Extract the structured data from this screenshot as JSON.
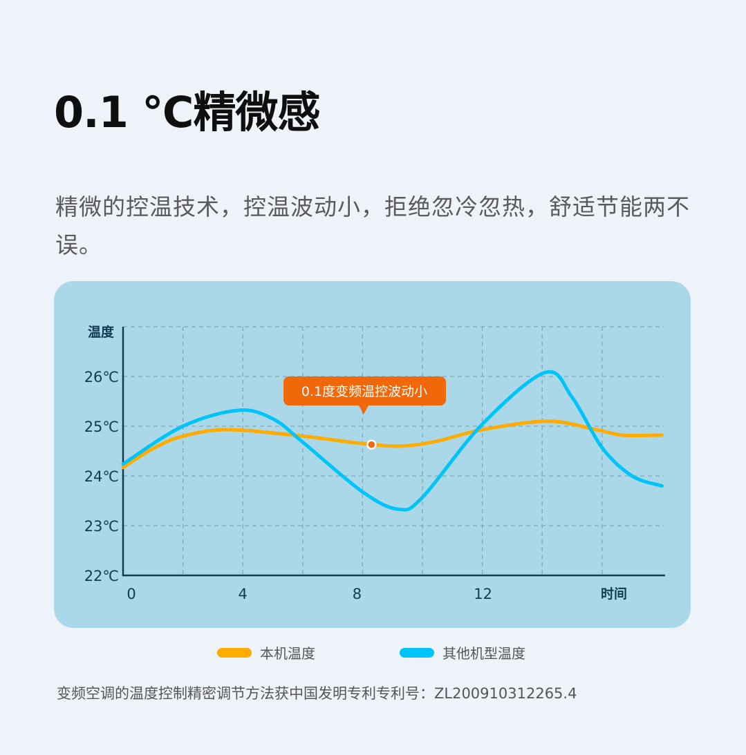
{
  "title": "0.1 ℃精微感",
  "description": "精微的控温技术，控温波动小，拒绝忽冷忽热，舒适节能两不误。",
  "footnote": "变频空调的温度控制精密调节方法获中国发明专利专利号：ZL200910312265.4",
  "chart_data": {
    "type": "line",
    "ylabel": "温度",
    "xlabel": "时间",
    "xlim": [
      0,
      18
    ],
    "ylim": [
      22,
      27
    ],
    "x_ticks": [
      "0",
      "4",
      "8",
      "12"
    ],
    "x_tick_values": [
      0,
      4,
      8,
      12
    ],
    "y_ticks": [
      "22℃",
      "23℃",
      "24℃",
      "25℃",
      "26℃"
    ],
    "y_tick_values": [
      22,
      23,
      24,
      25,
      26
    ],
    "grid": true,
    "legend_placement": "bottom",
    "annotation": {
      "text": "0.1度变频温控波动小",
      "x": 8.3,
      "y": 24.63,
      "color": "#f0680a"
    },
    "series": [
      {
        "name": "本机温度",
        "color": "#ffab00",
        "x": [
          0,
          1,
          2,
          3.5,
          6,
          8,
          9.3,
          10.5,
          12,
          14.2,
          15.8,
          16.7,
          18
        ],
        "y": [
          24.17,
          24.55,
          24.8,
          24.93,
          24.8,
          24.65,
          24.6,
          24.7,
          24.93,
          25.1,
          24.93,
          24.82,
          24.82
        ]
      },
      {
        "name": "其他机型温度",
        "color": "#00c3f8",
        "x": [
          0,
          2,
          3.85,
          5,
          6,
          8,
          9.2,
          10,
          12,
          14.1,
          15,
          16,
          17,
          18
        ],
        "y": [
          24.24,
          25.0,
          25.32,
          25.15,
          24.68,
          23.68,
          23.33,
          23.57,
          25.04,
          26.08,
          25.58,
          24.57,
          24.0,
          23.8
        ]
      }
    ]
  }
}
